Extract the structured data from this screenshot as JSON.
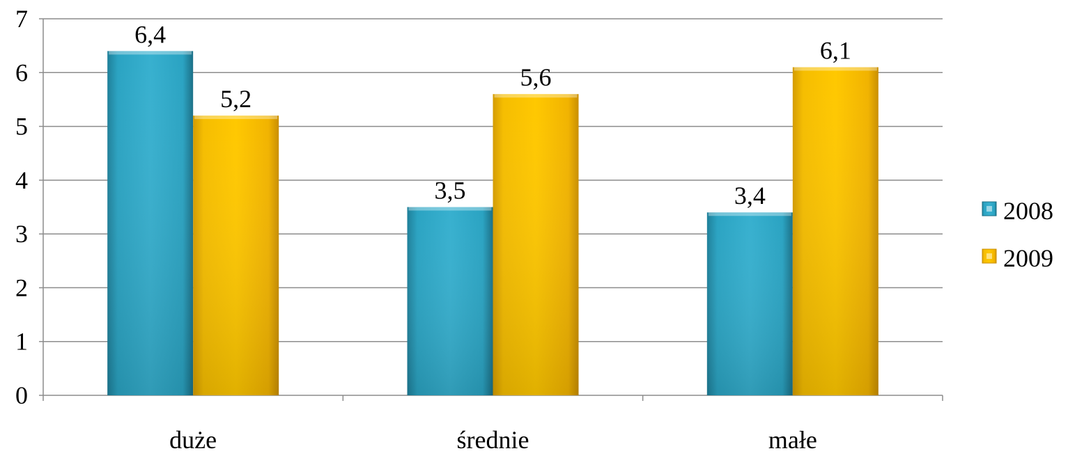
{
  "chart_data": {
    "type": "bar",
    "categories": [
      "duże",
      "średnie",
      "małe"
    ],
    "series": [
      {
        "name": "2008",
        "values": [
          6.4,
          3.5,
          3.4
        ],
        "labels": [
          "6,4",
          "3,5",
          "3,4"
        ],
        "color": "#2aa6c4"
      },
      {
        "name": "2009",
        "values": [
          5.2,
          5.6,
          6.1
        ],
        "labels": [
          "5,2",
          "5,6",
          "6,1"
        ],
        "color": "#f7c200"
      }
    ],
    "ylim": [
      0,
      7
    ],
    "yticks": [
      0,
      1,
      2,
      3,
      4,
      5,
      6,
      7
    ],
    "grid": true,
    "legend": "right"
  }
}
